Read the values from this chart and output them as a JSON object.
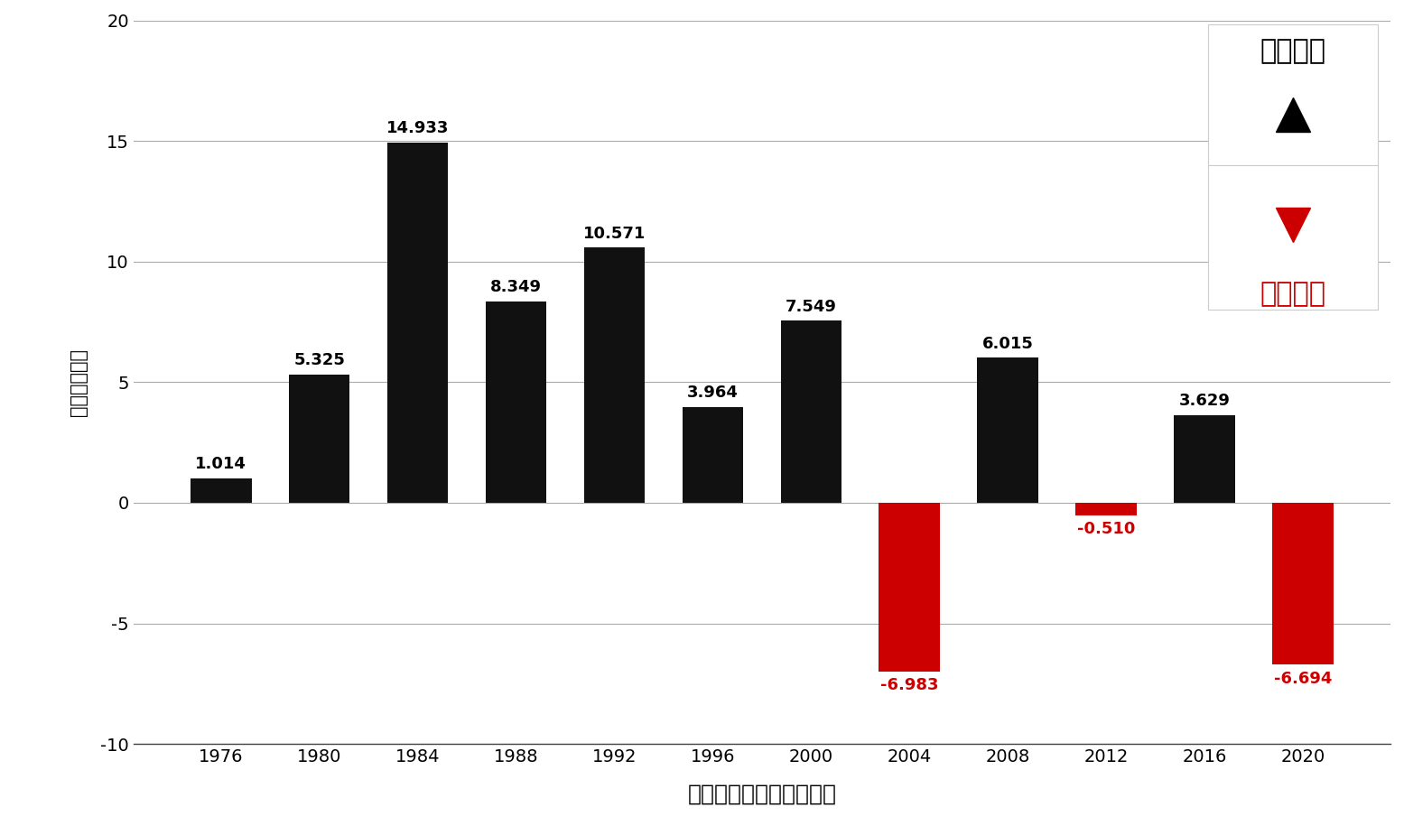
{
  "categories": [
    "1976",
    "1980",
    "1984",
    "1988",
    "1992",
    "1996",
    "2000",
    "2004",
    "2008",
    "2012",
    "2016",
    "2020"
  ],
  "values": [
    1.014,
    5.325,
    14.933,
    8.349,
    10.571,
    3.964,
    7.549,
    -6.983,
    6.015,
    -0.51,
    3.629,
    -6.694
  ],
  "bar_colors_positive": "#111111",
  "bar_colors_negative": "#cc0000",
  "red_color": "#cc0000",
  "xlabel": "アメリカ大統領選挙の年",
  "ylabel": "変動率（％）",
  "ylim": [
    -10,
    20
  ],
  "yticks": [
    -10,
    -5,
    0,
    5,
    10,
    15,
    20
  ],
  "legend_positive_label": "米ドル高",
  "legend_negative_label": "米ドル安",
  "background_color": "#ffffff",
  "bar_width": 0.62,
  "value_fontsize": 13,
  "axis_fontsize": 14,
  "xlabel_fontsize": 18,
  "ylabel_fontsize": 15,
  "legend_fontsize": 22
}
